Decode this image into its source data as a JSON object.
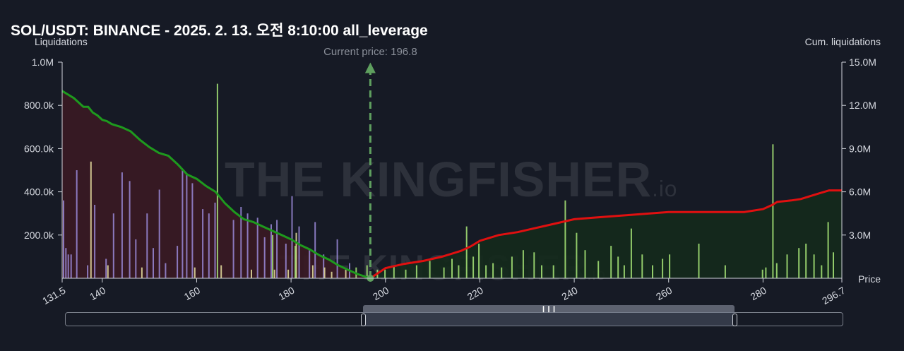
{
  "title": "SOL/USDT: BINANCE - 2025. 2. 13. 오전 8:10:00 all_leverage",
  "watermark": {
    "brand": "THE KINGFISHER",
    "suffix": ".io"
  },
  "colors": {
    "background": "#161a25",
    "short_cum_line": "#1e9a1e",
    "long_cum_line": "#e01010",
    "short_fill": "#3a1a24",
    "long_fill": "#142a1c",
    "bar_purple": "#9a8ad8",
    "bar_yellow": "#e8e0a0",
    "bar_green": "#a8e878",
    "current_price": "#5fa05f"
  },
  "chart_data": {
    "type": "bar",
    "title": "SOL/USDT: BINANCE - 2025. 2. 13. 오전 8:10:00 all_leverage",
    "ylabel_left": "Liquidations",
    "ylabel_right": "Cum. liquidations",
    "xlabel": "Price",
    "xlim": [
      131.5,
      296.7
    ],
    "xticks": [
      "131.5",
      "140",
      "160",
      "180",
      "200",
      "220",
      "240",
      "260",
      "280",
      "296.7"
    ],
    "ylim_left": [
      0,
      1000000
    ],
    "yticks_left": [
      "200.0k",
      "400.0k",
      "600.0k",
      "800.0k",
      "1.0M"
    ],
    "ylim_right": [
      0,
      15000000
    ],
    "yticks_right": [
      "3.0M",
      "6.0M",
      "9.0M",
      "12.0M",
      "15.0M"
    ],
    "current_price": {
      "label": "Current price: 196.8",
      "value": 196.8
    },
    "series": [
      {
        "type": "bar",
        "color": "purple",
        "x": [
          131.8,
          132.3,
          132.8,
          133.4,
          134.6,
          136.9,
          138.4,
          140.8,
          142.4,
          144.2,
          145.8,
          147.1,
          149.5,
          150.8,
          152.1,
          153.4,
          155.9,
          157.0,
          157.9,
          159.1,
          161.3,
          162.6,
          163.9,
          167.8,
          169.4,
          170.8,
          172.9,
          174.4,
          175.8,
          177.0,
          178.9,
          180.2,
          181.7,
          183.9,
          185.1,
          186.9,
          189.8,
          192.4
        ],
        "values": [
          360000,
          140000,
          110000,
          110000,
          500000,
          60000,
          340000,
          90000,
          300000,
          490000,
          450000,
          180000,
          300000,
          140000,
          410000,
          70000,
          150000,
          500000,
          480000,
          440000,
          320000,
          300000,
          350000,
          270000,
          330000,
          300000,
          280000,
          190000,
          250000,
          270000,
          160000,
          380000,
          240000,
          130000,
          260000,
          110000,
          180000,
          70000
        ]
      },
      {
        "type": "bar",
        "color": "yellow",
        "x": [
          137.6,
          141.2,
          148.4,
          159.6,
          165.2,
          171.6,
          176.5,
          179.4,
          181.1,
          184.6,
          187.1,
          188.6,
          191.6
        ],
        "values": [
          540000,
          60000,
          50000,
          50000,
          60000,
          40000,
          40000,
          40000,
          210000,
          60000,
          50000,
          30000,
          40000
        ]
      },
      {
        "type": "bar",
        "color": "green",
        "x": [
          164.4,
          176.1,
          180.9,
          193.8,
          196.1,
          198.3,
          199.9,
          201.8,
          204.3,
          206.6,
          209.4,
          212.4,
          214.1,
          215.5,
          217.2,
          218.6,
          219.8,
          221.3,
          222.8,
          224.6,
          226.8,
          229.2,
          231.5,
          233.1,
          235.6,
          238.1,
          240.5,
          242.3,
          245.1,
          247.8,
          249.3,
          250.6,
          252.1,
          254.4,
          256.6,
          258.7,
          260.2,
          266.4,
          272.0,
          279.9,
          280.6,
          282.1,
          282.9,
          285.1,
          287.6,
          289.1,
          290.8,
          292.4,
          293.8,
          294.9
        ],
        "values": [
          900000,
          200000,
          150000,
          50000,
          60000,
          40000,
          40000,
          60000,
          40000,
          60000,
          80000,
          50000,
          90000,
          60000,
          240000,
          100000,
          160000,
          60000,
          70000,
          50000,
          100000,
          130000,
          120000,
          60000,
          60000,
          360000,
          210000,
          130000,
          80000,
          150000,
          100000,
          60000,
          230000,
          110000,
          60000,
          90000,
          110000,
          160000,
          60000,
          40000,
          50000,
          620000,
          70000,
          110000,
          140000,
          160000,
          110000,
          60000,
          260000,
          120000
        ]
      }
    ],
    "cumulative": {
      "short_side": {
        "x": [
          131.5,
          133,
          134,
          135,
          136,
          137,
          138,
          139,
          140,
          141,
          142,
          143,
          144,
          146,
          148,
          150,
          152,
          154,
          156,
          158,
          160,
          162,
          164,
          166,
          168,
          170,
          172,
          174,
          176,
          178,
          180,
          182,
          184,
          186,
          188,
          190,
          192,
          194,
          196.8
        ],
        "values": [
          13000000,
          12700000,
          12500000,
          12200000,
          11900000,
          11900000,
          11500000,
          11300000,
          11000000,
          10900000,
          10700000,
          10600000,
          10500000,
          10200000,
          9600000,
          9100000,
          8700000,
          8500000,
          7900000,
          7200000,
          6900000,
          6400000,
          6000000,
          5200000,
          4600000,
          4100000,
          3900000,
          3600000,
          3300000,
          3000000,
          2700000,
          2300000,
          2000000,
          1600000,
          1300000,
          900000,
          600000,
          300000,
          0
        ]
      },
      "long_side": {
        "x": [
          196.8,
          200,
          204,
          208,
          212,
          216,
          218,
          220,
          224,
          228,
          232,
          236,
          240,
          244,
          248,
          252,
          256,
          260,
          264,
          268,
          272,
          276,
          280,
          282,
          283,
          286,
          288,
          290,
          292,
          294,
          296.7
        ],
        "values": [
          0,
          700000,
          1000000,
          1200000,
          1500000,
          1900000,
          2200000,
          2600000,
          3000000,
          3200000,
          3500000,
          3800000,
          4100000,
          4200000,
          4300000,
          4400000,
          4500000,
          4600000,
          4600000,
          4600000,
          4600000,
          4600000,
          4800000,
          5100000,
          5300000,
          5400000,
          5500000,
          5700000,
          5900000,
          6100000,
          6100000
        ]
      }
    }
  }
}
